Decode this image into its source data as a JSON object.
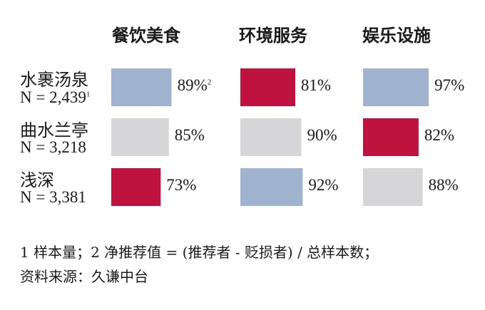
{
  "chart_data": {
    "type": "bar",
    "categories": [
      "餐饮美食",
      "环境服务",
      "娱乐设施"
    ],
    "rows": [
      {
        "name": "水裹汤泉",
        "n_text": "N = 2,439",
        "n_sup": "1",
        "values": [
          89,
          81,
          97
        ]
      },
      {
        "name": "曲水兰亭",
        "n_text": "N = 3,218",
        "n_sup": "",
        "values": [
          85,
          90,
          82
        ]
      },
      {
        "name": "浅深",
        "n_text": "N = 3,381",
        "n_sup": "",
        "values": [
          73,
          92,
          88
        ]
      }
    ],
    "value_labels": [
      [
        "89%",
        "81%",
        "97%"
      ],
      [
        "85%",
        "90%",
        "82%"
      ],
      [
        "73%",
        "92%",
        "88%"
      ]
    ],
    "value_label_sups": [
      [
        "2",
        "",
        ""
      ],
      [
        "",
        "",
        ""
      ],
      [
        "",
        "",
        ""
      ]
    ],
    "bar_colors": [
      [
        "#9fb3cf",
        "#c0123f",
        "#9fb3cf"
      ],
      [
        "#d6d6d8",
        "#d6d6d8",
        "#c0123f"
      ],
      [
        "#c0123f",
        "#9fb3cf",
        "#d6d6d8"
      ]
    ],
    "colors": {
      "top_score": "#9fb3cf",
      "middle_score": "#d6d6d8",
      "low_score": "#c0123f"
    },
    "xlim": [
      0,
      100
    ]
  },
  "footnotes": {
    "line1": "1 样本量；2 净推荐值 = (推荐者 - 贬损者) / 总样本数；",
    "line2": "资料来源：久谦中台"
  }
}
